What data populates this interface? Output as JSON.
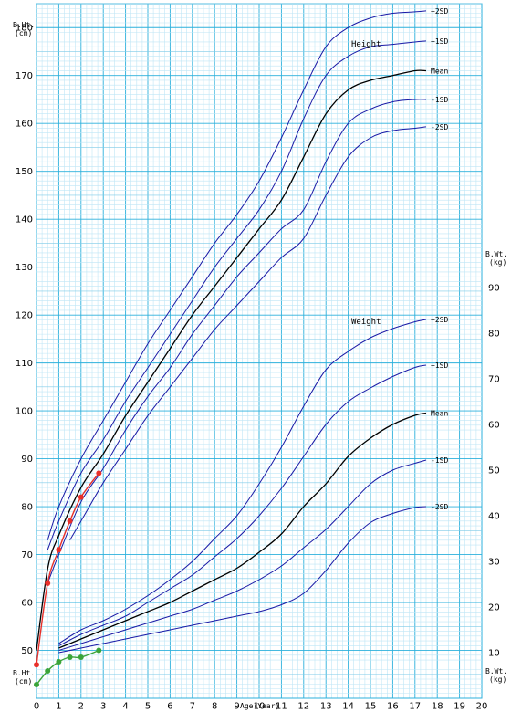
{
  "chart_data": {
    "type": "line",
    "x_axis": {
      "label": "Age(Year)",
      "min": 0,
      "max": 20,
      "ticks": [
        0,
        1,
        2,
        3,
        4,
        5,
        6,
        7,
        8,
        9,
        10,
        11,
        12,
        13,
        14,
        15,
        16,
        17,
        18,
        19,
        20
      ]
    },
    "left_axis": {
      "top_label_1": "B.Ht.",
      "top_label_2": "(cm)",
      "bottom_label_1": "B.Ht.",
      "bottom_label_2": "(cm)",
      "min": 40,
      "max": 185,
      "ticks": [
        50,
        60,
        70,
        80,
        90,
        100,
        110,
        120,
        130,
        140,
        150,
        160,
        170,
        180
      ]
    },
    "right_axis": {
      "top_label_1": "B.Wt.",
      "top_label_2": "(kg)",
      "bottom_label_1": "B.Wt.",
      "bottom_label_2": "(kg)",
      "min": 0,
      "max": 100,
      "ticks": [
        10,
        20,
        30,
        40,
        50,
        60,
        70,
        80,
        90
      ]
    },
    "height_title": "Height",
    "weight_title": "Weight",
    "grid": true,
    "height_curves": [
      {
        "name": "+2SD",
        "x": [
          0.5,
          1,
          2,
          3,
          4,
          5,
          6,
          7,
          8,
          9,
          10,
          11,
          12,
          13,
          14,
          15,
          16,
          17,
          17.5
        ],
        "y": [
          73,
          80,
          90,
          98,
          106,
          114,
          121,
          128,
          135,
          141,
          148,
          157,
          167,
          176,
          180,
          182,
          183,
          183.3,
          183.5
        ]
      },
      {
        "name": "+1SD",
        "x": [
          0.5,
          1,
          2,
          3,
          4,
          5,
          6,
          7,
          8,
          9,
          10,
          11,
          12,
          13,
          14,
          15,
          16,
          17,
          17.5
        ],
        "y": [
          71,
          77,
          87,
          94,
          102,
          109,
          116,
          123,
          130,
          136,
          142,
          150,
          161,
          170,
          174,
          176,
          176.5,
          177,
          177.2
        ]
      },
      {
        "name": "Mean",
        "x": [
          0,
          0.5,
          1,
          2,
          3,
          4,
          5,
          6,
          7,
          8,
          9,
          10,
          11,
          12,
          13,
          14,
          15,
          16,
          17,
          17.5
        ],
        "y": [
          50,
          67,
          74,
          84,
          91,
          99,
          106,
          113,
          120,
          126,
          132,
          138,
          144,
          153,
          162,
          167,
          169,
          170,
          171,
          171
        ]
      },
      {
        "name": "-1SD",
        "x": [
          0.5,
          1,
          2,
          3,
          4,
          5,
          6,
          7,
          8,
          9,
          10,
          11,
          12,
          13,
          14,
          15,
          16,
          17,
          17.5
        ],
        "y": [
          64,
          70,
          81,
          88,
          96,
          103,
          109,
          116,
          122,
          128,
          133,
          138,
          142,
          152,
          160,
          163,
          164.5,
          165,
          165
        ]
      },
      {
        "name": "-2SD",
        "x": [
          1.5,
          2,
          3,
          4,
          5,
          6,
          7,
          8,
          9,
          10,
          11,
          12,
          13,
          14,
          15,
          16,
          17,
          17.5
        ],
        "y": [
          73,
          77,
          85,
          92,
          99,
          105,
          111,
          117,
          122,
          127,
          132,
          136,
          145,
          153,
          157,
          158.5,
          159,
          159.3
        ]
      }
    ],
    "weight_curves": [
      {
        "name": "+2SD",
        "x": [
          1,
          2,
          3,
          4,
          5,
          6,
          7,
          8,
          9,
          10,
          11,
          12,
          13,
          14,
          15,
          16,
          17,
          17.5
        ],
        "y": [
          12,
          15,
          17,
          19.5,
          22.5,
          26,
          30,
          35,
          40,
          47,
          55,
          64,
          72,
          76,
          79,
          81,
          82.5,
          83
        ]
      },
      {
        "name": "+1SD",
        "x": [
          1,
          2,
          3,
          4,
          5,
          6,
          7,
          8,
          9,
          10,
          11,
          12,
          13,
          14,
          15,
          16,
          17,
          17.5
        ],
        "y": [
          11.5,
          14,
          16,
          18,
          21,
          24,
          27,
          31,
          35,
          40,
          46,
          53,
          60,
          65,
          68,
          70.5,
          72.5,
          73
        ]
      },
      {
        "name": "Mean",
        "x": [
          1,
          2,
          3,
          4,
          5,
          6,
          7,
          8,
          9,
          10,
          11,
          12,
          13,
          14,
          15,
          16,
          17,
          17.5
        ],
        "y": [
          11,
          13,
          15,
          17,
          19,
          21,
          23.5,
          26,
          28.5,
          32,
          36,
          42,
          47,
          53,
          57,
          60,
          62,
          62.5
        ]
      },
      {
        "name": "-1SD",
        "x": [
          1,
          2,
          3,
          4,
          5,
          6,
          7,
          8,
          9,
          10,
          11,
          12,
          13,
          14,
          15,
          16,
          17,
          17.5
        ],
        "y": [
          10.5,
          12,
          13.5,
          15,
          16.5,
          18,
          19.5,
          21.5,
          23.5,
          26,
          29,
          33,
          37,
          42,
          47,
          50,
          51.5,
          52.2
        ]
      },
      {
        "name": "-2SD",
        "x": [
          1,
          2,
          3,
          4,
          5,
          6,
          7,
          8,
          9,
          10,
          11,
          12,
          13,
          14,
          15,
          16,
          17,
          17.5
        ],
        "y": [
          10,
          11,
          12,
          13,
          14,
          15,
          16,
          17,
          18,
          19,
          20.5,
          23,
          28,
          34,
          38.5,
          40.5,
          41.8,
          42
        ]
      }
    ],
    "patient_height": {
      "x": [
        0,
        0.5,
        1,
        1.5,
        2,
        2.8
      ],
      "y": [
        47,
        64,
        71,
        77,
        82,
        87
      ]
    },
    "patient_weight": {
      "x": [
        0,
        0.5,
        1,
        1.5,
        2,
        2.8
      ],
      "y": [
        3,
        6,
        8,
        9,
        9,
        10.5
      ]
    },
    "colors": {
      "grid_minor": "#bfe6f6",
      "grid_major": "#2cb0dc",
      "curve": "#1a1aa6",
      "mean": "#000000",
      "patient_height": "#e8302a",
      "patient_weight": "#3aa43a"
    }
  }
}
